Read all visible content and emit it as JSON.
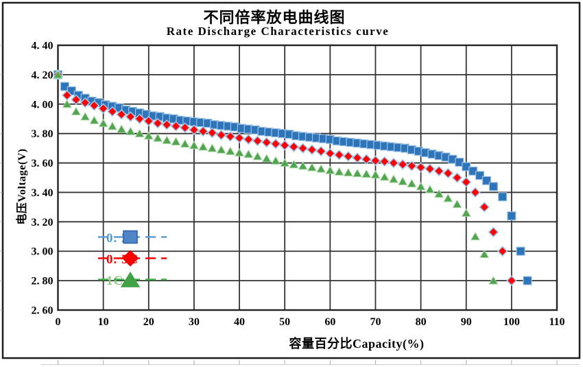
{
  "title": {
    "zh": "不同倍率放电曲线图",
    "en": "Rate Discharge Characteristics curve"
  },
  "axes": {
    "x_label": "容量百分比Capacity(%)",
    "y_label": "电压Voltage(V)"
  },
  "legend": [
    {
      "label": "0. 2C",
      "marker": "square",
      "line_color": "#5B9BD5",
      "fill": "#4F86C6",
      "edge": "#2A5CAA",
      "text_color": "#4E9AD3"
    },
    {
      "label": "0. 5C",
      "marker": "diamond",
      "line_color": "#FF0000",
      "fill": "#FF0000",
      "edge": "#E00000",
      "text_color": "#FF0000"
    },
    {
      "label": "1C",
      "marker": "triangle",
      "line_color": "#3FAE49",
      "fill": "#3FA345",
      "edge": "#3FA345",
      "text_color": "#8FC97E"
    }
  ],
  "chart_data": {
    "type": "scatter",
    "title": "不同倍率放电曲线图 / Rate Discharge Characteristics curve",
    "xlabel": "容量百分比Capacity(%)",
    "ylabel": "电压Voltage(V)",
    "xlim": [
      0,
      110
    ],
    "ylim": [
      2.6,
      4.4
    ],
    "grid": true,
    "legend_position": "inside-left",
    "x_ticks": [
      0,
      10,
      20,
      30,
      40,
      50,
      60,
      70,
      80,
      90,
      100,
      110
    ],
    "x_tick_labels": [
      "0",
      "10",
      "20",
      "30",
      "40",
      "50",
      "60",
      "70",
      "80",
      "90",
      "100",
      "110"
    ],
    "y_ticks": [
      4.4,
      4.2,
      4.0,
      3.8,
      3.6,
      3.4,
      3.2,
      3.0,
      2.8,
      2.6
    ],
    "y_tick_labels": [
      "4. 40",
      "4. 20",
      "4. 00",
      "3. 80",
      "3. 60",
      "3. 40",
      "3. 20",
      "3. 00",
      "2. 80",
      "2. 60"
    ],
    "grid_color": "#333333",
    "border_color": "#1c1c1c",
    "series": [
      {
        "name": "0.2C",
        "marker": "square",
        "color": "#2E74B9",
        "edge": "#9DC3E6",
        "points": [
          [
            0,
            4.2
          ],
          [
            1.5,
            4.12
          ],
          [
            3,
            4.09
          ],
          [
            4.5,
            4.06
          ],
          [
            6,
            4.04
          ],
          [
            7.5,
            4.02
          ],
          [
            9,
            4.01
          ],
          [
            10.5,
            3.995
          ],
          [
            12,
            3.985
          ],
          [
            13.5,
            3.975
          ],
          [
            15,
            3.96
          ],
          [
            16.5,
            3.95
          ],
          [
            18,
            3.94
          ],
          [
            19.5,
            3.93
          ],
          [
            21,
            3.92
          ],
          [
            22.5,
            3.915
          ],
          [
            24,
            3.905
          ],
          [
            25.5,
            3.9
          ],
          [
            27,
            3.89
          ],
          [
            28.5,
            3.885
          ],
          [
            30,
            3.88
          ],
          [
            31.5,
            3.875
          ],
          [
            33,
            3.87
          ],
          [
            34.5,
            3.86
          ],
          [
            36,
            3.855
          ],
          [
            37.5,
            3.85
          ],
          [
            39,
            3.845
          ],
          [
            40.5,
            3.835
          ],
          [
            42,
            3.83
          ],
          [
            43.5,
            3.825
          ],
          [
            45,
            3.815
          ],
          [
            46.5,
            3.81
          ],
          [
            48,
            3.805
          ],
          [
            49.5,
            3.8
          ],
          [
            51,
            3.795
          ],
          [
            52.5,
            3.785
          ],
          [
            54,
            3.78
          ],
          [
            55.5,
            3.775
          ],
          [
            57,
            3.77
          ],
          [
            58.5,
            3.765
          ],
          [
            60,
            3.76
          ],
          [
            61.5,
            3.75
          ],
          [
            63,
            3.745
          ],
          [
            64.5,
            3.74
          ],
          [
            66,
            3.735
          ],
          [
            67.5,
            3.73
          ],
          [
            69,
            3.725
          ],
          [
            70.5,
            3.72
          ],
          [
            72,
            3.715
          ],
          [
            73.5,
            3.71
          ],
          [
            75,
            3.705
          ],
          [
            76.5,
            3.7
          ],
          [
            78,
            3.69
          ],
          [
            79.5,
            3.68
          ],
          [
            81,
            3.67
          ],
          [
            82.5,
            3.66
          ],
          [
            84,
            3.65
          ],
          [
            85.5,
            3.64
          ],
          [
            87,
            3.625
          ],
          [
            88.5,
            3.605
          ],
          [
            90,
            3.575
          ],
          [
            91.5,
            3.545
          ],
          [
            93,
            3.515
          ],
          [
            94.5,
            3.48
          ],
          [
            96,
            3.44
          ],
          [
            98,
            3.37
          ],
          [
            100,
            3.24
          ],
          [
            102,
            3.0
          ],
          [
            103.5,
            2.8
          ]
        ]
      },
      {
        "name": "0.5C",
        "marker": "diamond",
        "color": "#FE0000",
        "edge": "#9DC3E6",
        "points": [
          [
            0,
            4.2
          ],
          [
            2,
            4.06
          ],
          [
            4,
            4.03
          ],
          [
            6,
            4.01
          ],
          [
            8,
            3.99
          ],
          [
            10,
            3.97
          ],
          [
            12,
            3.95
          ],
          [
            14,
            3.93
          ],
          [
            16,
            3.915
          ],
          [
            18,
            3.9
          ],
          [
            20,
            3.885
          ],
          [
            22,
            3.87
          ],
          [
            24,
            3.86
          ],
          [
            26,
            3.85
          ],
          [
            28,
            3.84
          ],
          [
            30,
            3.825
          ],
          [
            32,
            3.815
          ],
          [
            34,
            3.805
          ],
          [
            36,
            3.79
          ],
          [
            38,
            3.78
          ],
          [
            40,
            3.77
          ],
          [
            42,
            3.76
          ],
          [
            44,
            3.75
          ],
          [
            46,
            3.74
          ],
          [
            48,
            3.73
          ],
          [
            50,
            3.72
          ],
          [
            52,
            3.71
          ],
          [
            54,
            3.7
          ],
          [
            56,
            3.69
          ],
          [
            58,
            3.68
          ],
          [
            60,
            3.665
          ],
          [
            62,
            3.655
          ],
          [
            64,
            3.645
          ],
          [
            66,
            3.635
          ],
          [
            68,
            3.625
          ],
          [
            70,
            3.615
          ],
          [
            72,
            3.61
          ],
          [
            74,
            3.6
          ],
          [
            76,
            3.59
          ],
          [
            78,
            3.58
          ],
          [
            80,
            3.57
          ],
          [
            82,
            3.56
          ],
          [
            84,
            3.545
          ],
          [
            86,
            3.53
          ],
          [
            88,
            3.5
          ],
          [
            90,
            3.47
          ],
          [
            92,
            3.4
          ],
          [
            94,
            3.3
          ],
          [
            96,
            3.13
          ],
          [
            98,
            3.0
          ],
          [
            100,
            2.8
          ]
        ]
      },
      {
        "name": "1C",
        "marker": "triangle",
        "color": "#52A352",
        "edge": "#A6D7A0",
        "points": [
          [
            0,
            4.2
          ],
          [
            2,
            4.0
          ],
          [
            4,
            3.95
          ],
          [
            6,
            3.915
          ],
          [
            8,
            3.89
          ],
          [
            10,
            3.87
          ],
          [
            12,
            3.85
          ],
          [
            14,
            3.83
          ],
          [
            16,
            3.815
          ],
          [
            18,
            3.8
          ],
          [
            20,
            3.785
          ],
          [
            22,
            3.77
          ],
          [
            24,
            3.755
          ],
          [
            26,
            3.745
          ],
          [
            28,
            3.73
          ],
          [
            30,
            3.72
          ],
          [
            32,
            3.71
          ],
          [
            34,
            3.7
          ],
          [
            36,
            3.69
          ],
          [
            38,
            3.68
          ],
          [
            40,
            3.67
          ],
          [
            42,
            3.66
          ],
          [
            44,
            3.645
          ],
          [
            46,
            3.63
          ],
          [
            48,
            3.615
          ],
          [
            50,
            3.6
          ],
          [
            52,
            3.59
          ],
          [
            54,
            3.58
          ],
          [
            56,
            3.57
          ],
          [
            58,
            3.56
          ],
          [
            60,
            3.55
          ],
          [
            62,
            3.54
          ],
          [
            64,
            3.535
          ],
          [
            66,
            3.53
          ],
          [
            68,
            3.525
          ],
          [
            70,
            3.52
          ],
          [
            72,
            3.505
          ],
          [
            74,
            3.49
          ],
          [
            76,
            3.475
          ],
          [
            78,
            3.46
          ],
          [
            80,
            3.44
          ],
          [
            82,
            3.42
          ],
          [
            84,
            3.39
          ],
          [
            86,
            3.36
          ],
          [
            88,
            3.32
          ],
          [
            90,
            3.26
          ],
          [
            92,
            3.1
          ],
          [
            94,
            2.98
          ],
          [
            96,
            2.8
          ]
        ]
      }
    ]
  }
}
